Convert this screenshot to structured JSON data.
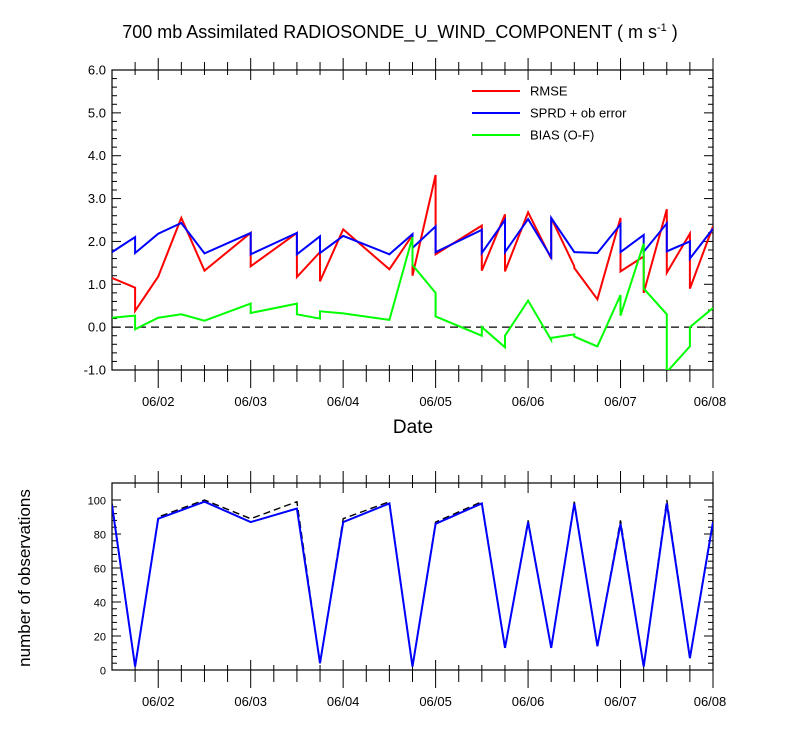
{
  "title_main": "700 mb Assimilated RADIOSONDE_U_WIND_COMPONENT ( m s",
  "title_sup": "-1",
  "title_tail": " )",
  "chart_data": [
    {
      "type": "line",
      "xlabel": "Date",
      "ylabel": "",
      "ylim": [
        -1.0,
        6.0
      ],
      "yticks": [
        "-1.0",
        "0.0",
        "1.0",
        "2.0",
        "3.0",
        "4.0",
        "5.0",
        "6.0"
      ],
      "xlim": [
        0.5,
        7.0
      ],
      "xticks": [
        "06/02",
        "06/03",
        "06/04",
        "06/05",
        "06/06",
        "06/07",
        "06/08"
      ],
      "xtick_values": [
        1,
        2,
        3,
        4,
        5,
        6,
        7
      ],
      "legend_position": "top-right",
      "reference_line_y": 0,
      "series": [
        {
          "name": "RMSE",
          "color": "#ff0000",
          "x": [
            0.5,
            0.75,
            0.75,
            1.0,
            1.25,
            1.5,
            1.5,
            2.0,
            2.0,
            2.5,
            2.5,
            2.75,
            2.75,
            3.0,
            3.5,
            3.75,
            3.75,
            4.0,
            4.0,
            4.5,
            4.5,
            4.75,
            4.75,
            5.0,
            5.25,
            5.25,
            5.5,
            5.5,
            5.75,
            6.0,
            6.0,
            6.25,
            6.25,
            6.5,
            6.5,
            6.75,
            6.75,
            7.0
          ],
          "y": [
            1.15,
            0.92,
            0.38,
            1.18,
            2.55,
            1.32,
            1.32,
            2.2,
            1.42,
            2.2,
            1.17,
            1.75,
            1.07,
            2.28,
            1.35,
            2.15,
            1.2,
            3.55,
            1.7,
            2.37,
            1.32,
            2.63,
            1.3,
            2.68,
            1.6,
            2.55,
            1.42,
            1.38,
            0.65,
            2.55,
            1.3,
            1.65,
            0.8,
            2.75,
            1.27,
            2.18,
            0.9,
            2.35
          ]
        },
        {
          "name": "SPRD + ob error",
          "color": "#0000ff",
          "x": [
            0.5,
            0.75,
            0.75,
            1.0,
            1.25,
            1.5,
            1.5,
            2.0,
            2.0,
            2.5,
            2.5,
            2.75,
            2.75,
            3.0,
            3.5,
            3.75,
            3.75,
            4.0,
            4.0,
            4.5,
            4.5,
            4.75,
            4.75,
            5.0,
            5.25,
            5.25,
            5.5,
            5.5,
            5.75,
            6.0,
            6.0,
            6.25,
            6.25,
            6.5,
            6.5,
            6.75,
            6.75,
            7.0
          ],
          "y": [
            1.75,
            2.1,
            1.73,
            2.18,
            2.43,
            1.72,
            1.72,
            2.2,
            1.7,
            2.2,
            1.7,
            2.12,
            1.73,
            2.13,
            1.7,
            2.17,
            1.85,
            2.35,
            1.75,
            2.27,
            1.73,
            2.5,
            1.75,
            2.52,
            1.63,
            2.55,
            1.75,
            1.75,
            1.73,
            2.4,
            1.75,
            2.15,
            1.76,
            2.42,
            1.77,
            2.0,
            1.6,
            2.3
          ]
        },
        {
          "name": "BIAS (O-F)",
          "color": "#00ff00",
          "x": [
            0.5,
            0.75,
            0.75,
            1.0,
            1.25,
            1.5,
            1.5,
            2.0,
            2.0,
            2.5,
            2.5,
            2.75,
            2.75,
            3.0,
            3.5,
            3.75,
            3.75,
            4.0,
            4.0,
            4.5,
            4.5,
            4.75,
            4.75,
            5.0,
            5.25,
            5.25,
            5.5,
            5.5,
            5.75,
            6.0,
            6.0,
            6.25,
            6.25,
            6.5,
            6.5,
            6.75,
            6.75,
            7.0
          ],
          "y": [
            0.22,
            0.27,
            -0.05,
            0.22,
            0.3,
            0.15,
            0.15,
            0.55,
            0.33,
            0.55,
            0.3,
            0.2,
            0.37,
            0.32,
            0.17,
            2.1,
            1.45,
            0.8,
            0.25,
            -0.2,
            0.0,
            -0.47,
            -0.2,
            0.62,
            -0.3,
            -0.25,
            -0.17,
            -0.22,
            -0.45,
            0.75,
            0.27,
            1.95,
            0.9,
            0.3,
            -1.05,
            -0.45,
            0.0,
            0.45
          ]
        }
      ]
    },
    {
      "type": "line",
      "xlabel": "",
      "ylabel": "number of observations",
      "ylim": [
        0,
        110
      ],
      "yticks": [
        "0",
        "20",
        "40",
        "60",
        "80",
        "100"
      ],
      "xlim": [
        0.5,
        7.0
      ],
      "xticks": [
        "06/02",
        "06/03",
        "06/04",
        "06/05",
        "06/06",
        "06/07",
        "06/08"
      ],
      "xtick_values": [
        1,
        2,
        3,
        4,
        5,
        6,
        7
      ],
      "series": [
        {
          "name": "",
          "color": "#000000",
          "style": "dashed",
          "x": [
            0.5,
            0.75,
            1.0,
            1.5,
            2.0,
            2.5,
            2.75,
            3.0,
            3.5,
            3.75,
            4.0,
            4.5,
            4.75,
            5.0,
            5.25,
            5.5,
            5.75,
            6.0,
            6.25,
            6.5,
            6.75,
            7.0
          ],
          "y": [
            98,
            2,
            90,
            100,
            89,
            99,
            4,
            89,
            99,
            2,
            87,
            99,
            13,
            88,
            13,
            99,
            14,
            88,
            2,
            100,
            7,
            88
          ]
        },
        {
          "name": "",
          "color": "#0000ff",
          "style": "solid",
          "x": [
            0.5,
            0.75,
            1.0,
            1.5,
            2.0,
            2.5,
            2.75,
            3.0,
            3.5,
            3.75,
            4.0,
            4.5,
            4.75,
            5.0,
            5.25,
            5.5,
            5.75,
            6.0,
            6.25,
            6.5,
            6.75,
            7.0
          ],
          "y": [
            97,
            2,
            89,
            99,
            87,
            95,
            4,
            87,
            98,
            2,
            86,
            98,
            13,
            87,
            13,
            98,
            14,
            86,
            2,
            98,
            7,
            87
          ]
        }
      ]
    }
  ]
}
